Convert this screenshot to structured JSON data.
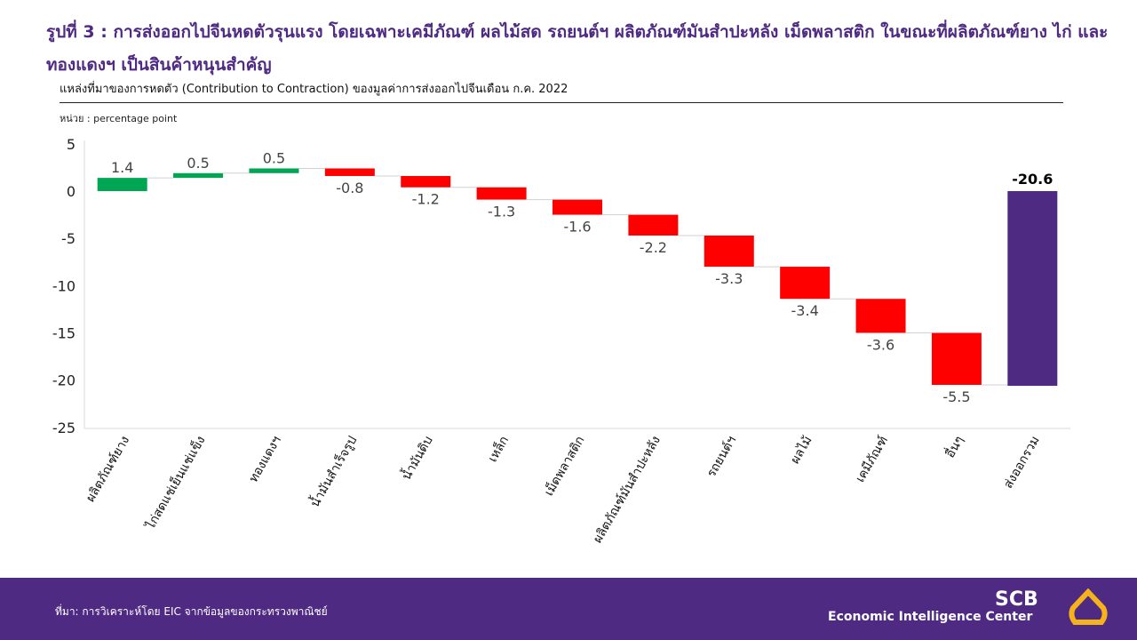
{
  "title": "รูปที่ 3 : การส่งออกไปจีนหดตัวรุนแรง โดยเฉพาะเคมีภัณฑ์ ผลไม้สด รถยนต์ฯ ผลิตภัณฑ์มันสำปะหลัง เม็ดพลาสติก ในขณะที่ผลิตภัณฑ์ยาง ไก่ และทองแดงฯ เป็นสินค้าหนุนสำคัญ",
  "footer": {
    "source": "ที่มา: การวิเคราะห์โดย EIC จากข้อมูลของกระทรวงพาณิชย์",
    "logo_top": "SCB",
    "logo_bottom": "Economic Intelligence Center"
  },
  "chart_data": {
    "type": "waterfall",
    "title": "แหล่งที่มาของการหดตัว (Contribution to Contraction) ของมูลค่าการส่งออกไปจีนเดือน ก.ค. 2022",
    "unit_label": "หน่วย : percentage  point",
    "categories": [
      "ผลิตภัณฑ์ยาง",
      "ไก่สดแช่เย็นแช่แข็ง",
      "ทองแดงฯ",
      "น้ำมันสำเร็จรูป",
      "น้ำมันดิบ",
      "เหล็ก",
      "เม็ดพลาสติก",
      "ผลิตภัณฑ์มันสำปะหลัง",
      "รถยนต์ฯ",
      "ผลไม้",
      "เคมีภัณฑ์",
      "อื่นๆ",
      "ส่งออกรวม"
    ],
    "values": [
      1.4,
      0.5,
      0.5,
      -0.8,
      -1.2,
      -1.3,
      -1.6,
      -2.2,
      -3.3,
      -3.4,
      -3.6,
      -5.5,
      -20.6
    ],
    "labels": [
      "1.4",
      "0.5",
      "0.5",
      "-0.8",
      "-1.2",
      "-1.3",
      "-1.6",
      "-2.2",
      "-3.3",
      "-3.4",
      "-3.6",
      "-5.5",
      "-20.6"
    ],
    "total_index": 12,
    "ylim": [
      -25,
      5
    ],
    "yticks": [
      "5",
      "0",
      "-5",
      "-10",
      "-15",
      "-20",
      "-25"
    ],
    "colors": {
      "increase": "#00a651",
      "decrease": "#ff0000",
      "total": "#4f2a83"
    }
  }
}
